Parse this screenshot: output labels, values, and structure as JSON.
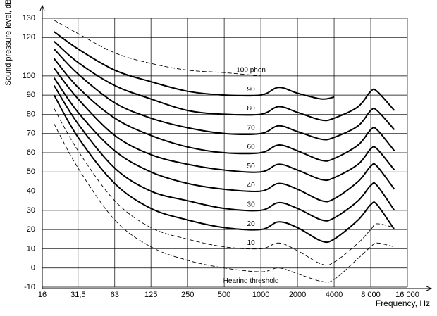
{
  "chart_data": {
    "type": "line",
    "xlabel": "Frequency, Hz",
    "ylabel": "Sound pressure level, dB",
    "xscale": "log",
    "xlim": [
      16,
      16000
    ],
    "ylim": [
      -10,
      130
    ],
    "xticks": [
      16,
      {
        "value": 31.5,
        "label": "31,5"
      },
      63,
      125,
      250,
      500,
      1000,
      2000,
      4000,
      {
        "value": 8000,
        "label": "8 000"
      },
      {
        "value": 16000,
        "label": "16 000"
      }
    ],
    "yticks": [
      130,
      120,
      100,
      90,
      80,
      70,
      60,
      50,
      40,
      30,
      20,
      10,
      0,
      -10
    ],
    "grid": true,
    "x": [
      20,
      31.5,
      63,
      125,
      250,
      500,
      1000,
      1400,
      2000,
      3150,
      4000,
      6300,
      8000,
      9000,
      12500
    ],
    "series": [
      {
        "name": "100 phon",
        "color": "#000000",
        "line_style": "dashed",
        "values": [
          129,
          122,
          112,
          106.5,
          103,
          101.7,
          100,
          null,
          null,
          null,
          null,
          null,
          null,
          null,
          null
        ]
      },
      {
        "name": "90",
        "color": "#000000",
        "line_style": "solid",
        "values": [
          123,
          114,
          103,
          97,
          92,
          90,
          90,
          94,
          91,
          88,
          89,
          null,
          null,
          null,
          null
        ]
      },
      {
        "name": "80",
        "color": "#000000",
        "line_style": "solid",
        "values": [
          118,
          107,
          95,
          88,
          82,
          80,
          80,
          84,
          81,
          77,
          78,
          84,
          92,
          92,
          82
        ]
      },
      {
        "name": "70",
        "color": "#000000",
        "line_style": "solid",
        "values": [
          114,
          101,
          86,
          78,
          73,
          70,
          70,
          74,
          71,
          67,
          68,
          74,
          82,
          82,
          72
        ]
      },
      {
        "name": "60",
        "color": "#000000",
        "line_style": "solid",
        "values": [
          109,
          94,
          78,
          69,
          63,
          60,
          60,
          64,
          61,
          56,
          57,
          64,
          72,
          72,
          61
        ]
      },
      {
        "name": "50",
        "color": "#000000",
        "line_style": "solid",
        "values": [
          104,
          88,
          69,
          59,
          54,
          51,
          50,
          54,
          51,
          46,
          47,
          54,
          62,
          62,
          51
        ]
      },
      {
        "name": "40",
        "color": "#000000",
        "line_style": "solid",
        "values": [
          99,
          81,
          61,
          50,
          44,
          41,
          40,
          44,
          41,
          35,
          36,
          45,
          53,
          53,
          41
        ]
      },
      {
        "name": "30",
        "color": "#000000",
        "line_style": "solid",
        "values": [
          95,
          75,
          52,
          40,
          35,
          31,
          30,
          34,
          31,
          25,
          26,
          35,
          43,
          43,
          30
        ]
      },
      {
        "name": "20",
        "color": "#000000",
        "line_style": "solid",
        "values": [
          90,
          68,
          44,
          31,
          25,
          21,
          20,
          24,
          21,
          14,
          15,
          25,
          33,
          33,
          20
        ]
      },
      {
        "name": "10",
        "color": "#000000",
        "line_style": "dashed",
        "values": [
          83,
          61,
          35,
          21,
          15,
          11,
          10,
          13,
          9,
          2,
          3,
          13,
          20,
          23,
          21
        ]
      },
      {
        "name": "Hearing threshold",
        "color": "#000000",
        "line_style": "dashed",
        "values": [
          75,
          52,
          25,
          11,
          4,
          0,
          -2,
          0,
          -3,
          -7,
          -6,
          5,
          11,
          13,
          11
        ]
      }
    ]
  }
}
